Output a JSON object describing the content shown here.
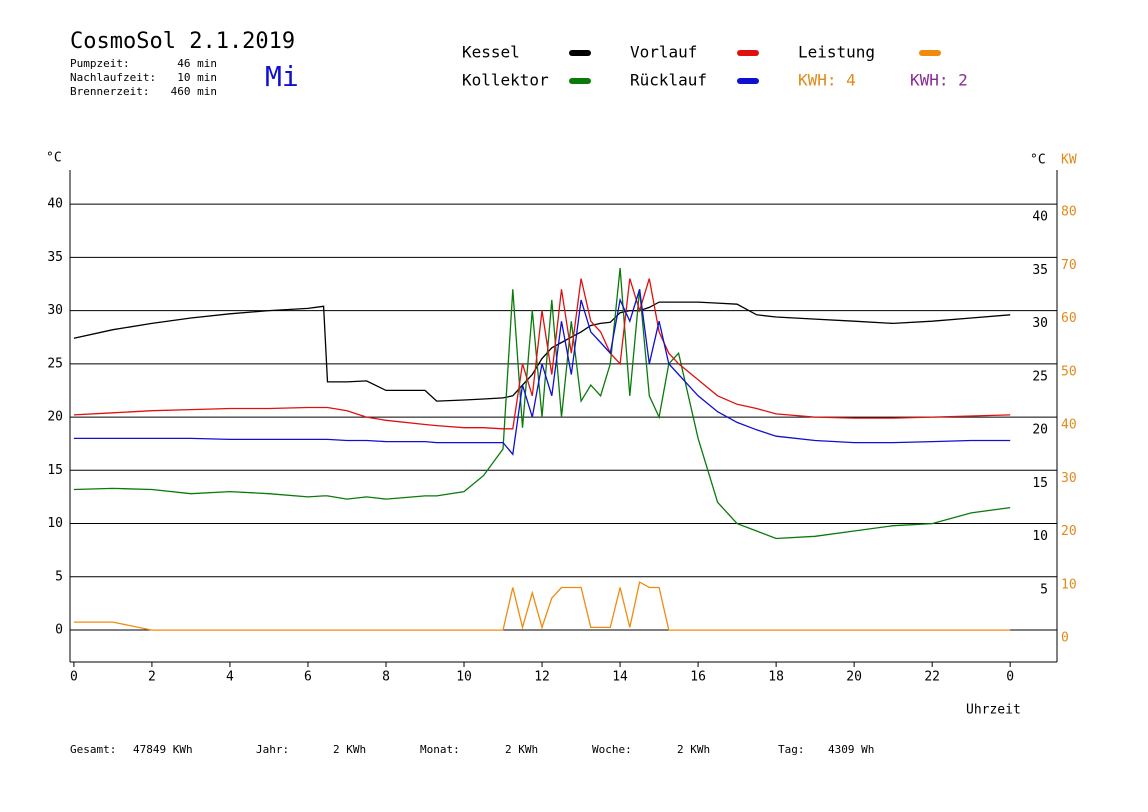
{
  "header": {
    "title": "CosmoSol 2.1.2019",
    "day": "Mi",
    "info": [
      [
        "Pumpzeit:",
        "46 min"
      ],
      [
        "Nachlaufzeit:",
        "10 min"
      ],
      [
        "Brennerzeit:",
        "460 min"
      ]
    ]
  },
  "footer": [
    [
      "Gesamt:",
      "47849 KWh"
    ],
    [
      "Jahr:",
      "2 KWh"
    ],
    [
      "Monat:",
      "2 KWh"
    ],
    [
      "Woche:",
      "2 KWh"
    ],
    [
      "Tag:",
      "4309 Wh"
    ]
  ],
  "chart_data": {
    "type": "line",
    "y_unit": "°C",
    "y_unit_right": "°C",
    "y2_unit": "KW",
    "x_label": "Uhrzeit",
    "kwh_labels": [
      {
        "text": "KWH: 4",
        "color": "#e08a1a"
      },
      {
        "text": "KWH: 2",
        "color": "#8a2a9a"
      }
    ],
    "xlim": [
      -0.1,
      25.2
    ],
    "xticks": [
      0,
      2,
      4,
      6,
      8,
      10,
      12,
      14,
      16,
      18,
      20,
      22,
      {
        "value": 24,
        "label": "0"
      }
    ],
    "ylim": [
      -3,
      43.2
    ],
    "yticks": [
      0,
      5,
      10,
      15,
      20,
      25,
      30,
      35,
      40
    ],
    "yticks_right": [
      5,
      10,
      15,
      20,
      25,
      30,
      35,
      40
    ],
    "y2lim": [
      -6,
      86.4
    ],
    "y2ticks": [
      0,
      10,
      20,
      30,
      40,
      50,
      60,
      70,
      80
    ],
    "x": [
      0,
      1,
      2,
      3,
      4,
      5,
      6,
      6.4,
      6.5,
      7,
      7.5,
      8,
      9,
      9.3,
      10,
      10.5,
      11,
      11.25,
      11.5,
      11.75,
      12,
      12.25,
      12.5,
      12.75,
      13,
      13.25,
      13.5,
      13.75,
      14,
      14.25,
      14.5,
      14.75,
      15,
      15.25,
      15.5,
      16,
      16.5,
      17,
      17.5,
      18,
      19,
      20,
      21,
      22,
      23,
      24
    ],
    "series": [
      {
        "name": "Kessel",
        "color": "#000000",
        "values": [
          27.4,
          28.2,
          28.8,
          29.3,
          29.7,
          30.0,
          30.2,
          30.4,
          23.3,
          23.3,
          23.4,
          22.5,
          22.5,
          21.5,
          21.6,
          21.7,
          21.8,
          22.0,
          23,
          24,
          25.5,
          26.5,
          27,
          27.5,
          28,
          28.6,
          28.8,
          28.9,
          29.8,
          30,
          30,
          30.3,
          30.8,
          30.8,
          30.8,
          30.8,
          30.7,
          30.6,
          29.6,
          29.4,
          29.2,
          29.0,
          28.8,
          29,
          29.3,
          29.6
        ]
      },
      {
        "name": "Kollektor",
        "color": "#0a7a0a",
        "values": [
          13.2,
          13.3,
          13.2,
          12.8,
          13.0,
          12.8,
          12.5,
          12.6,
          12.6,
          12.3,
          12.5,
          12.3,
          12.6,
          12.6,
          13.0,
          14.5,
          17,
          32,
          19,
          30,
          20,
          31,
          20,
          29,
          21.5,
          23,
          22,
          25,
          34,
          22,
          32,
          22,
          20,
          25,
          26,
          18,
          12,
          10,
          9.3,
          8.6,
          8.8,
          9.3,
          9.8,
          10,
          11,
          11.5
        ]
      },
      {
        "name": "Vorlauf",
        "color": "#e01010",
        "values": [
          20.2,
          20.4,
          20.6,
          20.7,
          20.8,
          20.8,
          20.9,
          20.9,
          20.9,
          20.6,
          20,
          19.7,
          19.3,
          19.2,
          19,
          19,
          18.9,
          18.9,
          25,
          22,
          30,
          24,
          32,
          26,
          33,
          29,
          28,
          26,
          25,
          33,
          30,
          33,
          28,
          26,
          25,
          23.5,
          22,
          21.2,
          20.8,
          20.3,
          20,
          19.9,
          19.9,
          20,
          20.1,
          20.2
        ]
      },
      {
        "name": "Rücklauf",
        "color": "#1010d0",
        "values": [
          18.0,
          18.0,
          18.0,
          18.0,
          17.9,
          17.9,
          17.9,
          17.9,
          17.9,
          17.8,
          17.8,
          17.7,
          17.7,
          17.6,
          17.6,
          17.6,
          17.6,
          16.5,
          23,
          20,
          25,
          22,
          29,
          24,
          31,
          28,
          27,
          26,
          31,
          29,
          32,
          25,
          29,
          25,
          24,
          22,
          20.5,
          19.5,
          18.8,
          18.2,
          17.8,
          17.6,
          17.6,
          17.7,
          17.8,
          17.8
        ]
      },
      {
        "name": "Leistung",
        "color": "#f08a10",
        "axis": "y2",
        "values": [
          1.5,
          1.5,
          0,
          0,
          0,
          0,
          0,
          0,
          0,
          0,
          0,
          0,
          0,
          0,
          0,
          0,
          0,
          8,
          0.5,
          7,
          0.5,
          6,
          8,
          8,
          8,
          0.5,
          0.5,
          0.5,
          8,
          0.5,
          9,
          8,
          8,
          0,
          0,
          0,
          0,
          0,
          0,
          0,
          0,
          0,
          0,
          0,
          0,
          0
        ]
      }
    ]
  }
}
